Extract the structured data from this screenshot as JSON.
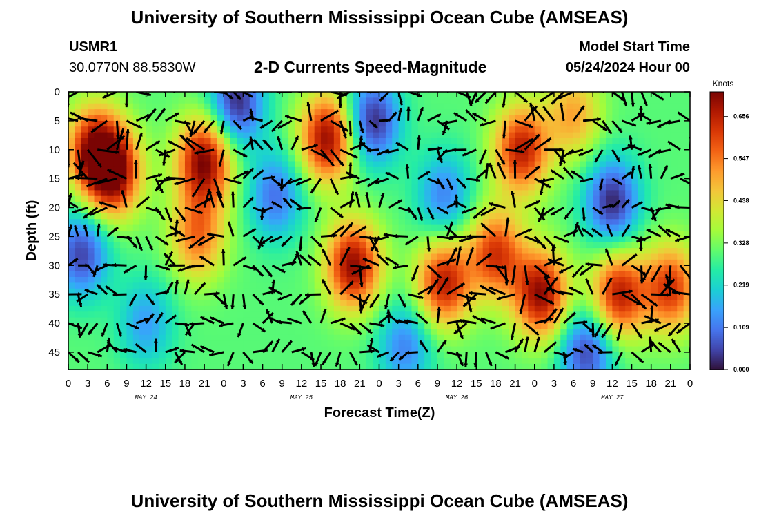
{
  "header": {
    "title_top": "University of Southern Mississippi Ocean Cube (AMSEAS)",
    "station": "USMR1",
    "coords": "30.0770N  88.5830W",
    "subtitle": "2-D Currents Speed-Magnitude",
    "model_label": "Model Start Time",
    "model_time": "05/24/2024 Hour 00"
  },
  "footer": {
    "title_bottom": "University of Southern Mississippi Ocean Cube (AMSEAS)"
  },
  "colors": {
    "ramp": [
      "#30123b",
      "#4145ab",
      "#4675ed",
      "#39a2fc",
      "#1bcfd4",
      "#24eca6",
      "#61fc6c",
      "#a4fc3b",
      "#d1e834",
      "#f3c63a",
      "#fe9b2d",
      "#f36315",
      "#d93806",
      "#b11901",
      "#7a0403"
    ]
  },
  "chart_data": {
    "type": "heatmap",
    "title": "2-D Currents Speed-Magnitude",
    "xlabel": "Forecast Time(Z)",
    "ylabel": "Depth (ft)",
    "x_range_hours": [
      0,
      96
    ],
    "y_range_ft": [
      0,
      48
    ],
    "x_tick_labels": [
      "0",
      "3",
      "6",
      "9",
      "12",
      "15",
      "18",
      "21",
      "0",
      "3",
      "6",
      "9",
      "12",
      "15",
      "18",
      "21",
      "0",
      "3",
      "6",
      "9",
      "12",
      "15",
      "18",
      "21",
      "0",
      "3",
      "6",
      "9",
      "12",
      "15",
      "18",
      "21",
      "0"
    ],
    "date_labels": [
      "MAY 24",
      "MAY 25",
      "MAY 26",
      "MAY 27"
    ],
    "y_tick_labels": [
      "0",
      "5",
      "10",
      "15",
      "20",
      "25",
      "30",
      "35",
      "40",
      "45"
    ],
    "colorbar": {
      "title": "Knots",
      "range": [
        0,
        0.72
      ],
      "tick_labels": [
        "0.656",
        "0.547",
        "0.438",
        "0.328",
        "0.219",
        "0.109",
        "0.000"
      ]
    },
    "features": [
      {
        "hour": 4,
        "depth": 10,
        "speed": 0.66
      },
      {
        "hour": 7,
        "depth": 14,
        "speed": 0.7
      },
      {
        "hour": 21,
        "depth": 12,
        "speed": 0.72
      },
      {
        "hour": 20,
        "depth": 25,
        "speed": 0.55
      },
      {
        "hour": 40,
        "depth": 8,
        "speed": 0.7
      },
      {
        "hour": 44,
        "depth": 30,
        "speed": 0.7
      },
      {
        "hour": 58,
        "depth": 33,
        "speed": 0.66
      },
      {
        "hour": 66,
        "depth": 28,
        "speed": 0.62
      },
      {
        "hour": 70,
        "depth": 10,
        "speed": 0.66
      },
      {
        "hour": 73,
        "depth": 35,
        "speed": 0.7
      },
      {
        "hour": 85,
        "depth": 35,
        "speed": 0.66
      },
      {
        "hour": 93,
        "depth": 34,
        "speed": 0.62
      },
      {
        "hour": 78,
        "depth": 4,
        "speed": 0.5
      },
      {
        "hour": 26,
        "depth": 2,
        "speed": 0.02
      },
      {
        "hour": 2,
        "depth": 28,
        "speed": 0.05
      },
      {
        "hour": 47,
        "depth": 5,
        "speed": 0.02
      },
      {
        "hour": 58,
        "depth": 18,
        "speed": 0.12
      },
      {
        "hour": 84,
        "depth": 19,
        "speed": 0.02
      },
      {
        "hour": 80,
        "depth": 45,
        "speed": 0.05
      },
      {
        "hour": 32,
        "depth": 18,
        "speed": 0.1
      },
      {
        "hour": 12,
        "depth": 40,
        "speed": 0.15
      },
      {
        "hour": 35,
        "depth": 35,
        "speed": 0.3
      },
      {
        "hour": 52,
        "depth": 44,
        "speed": 0.12
      }
    ]
  }
}
